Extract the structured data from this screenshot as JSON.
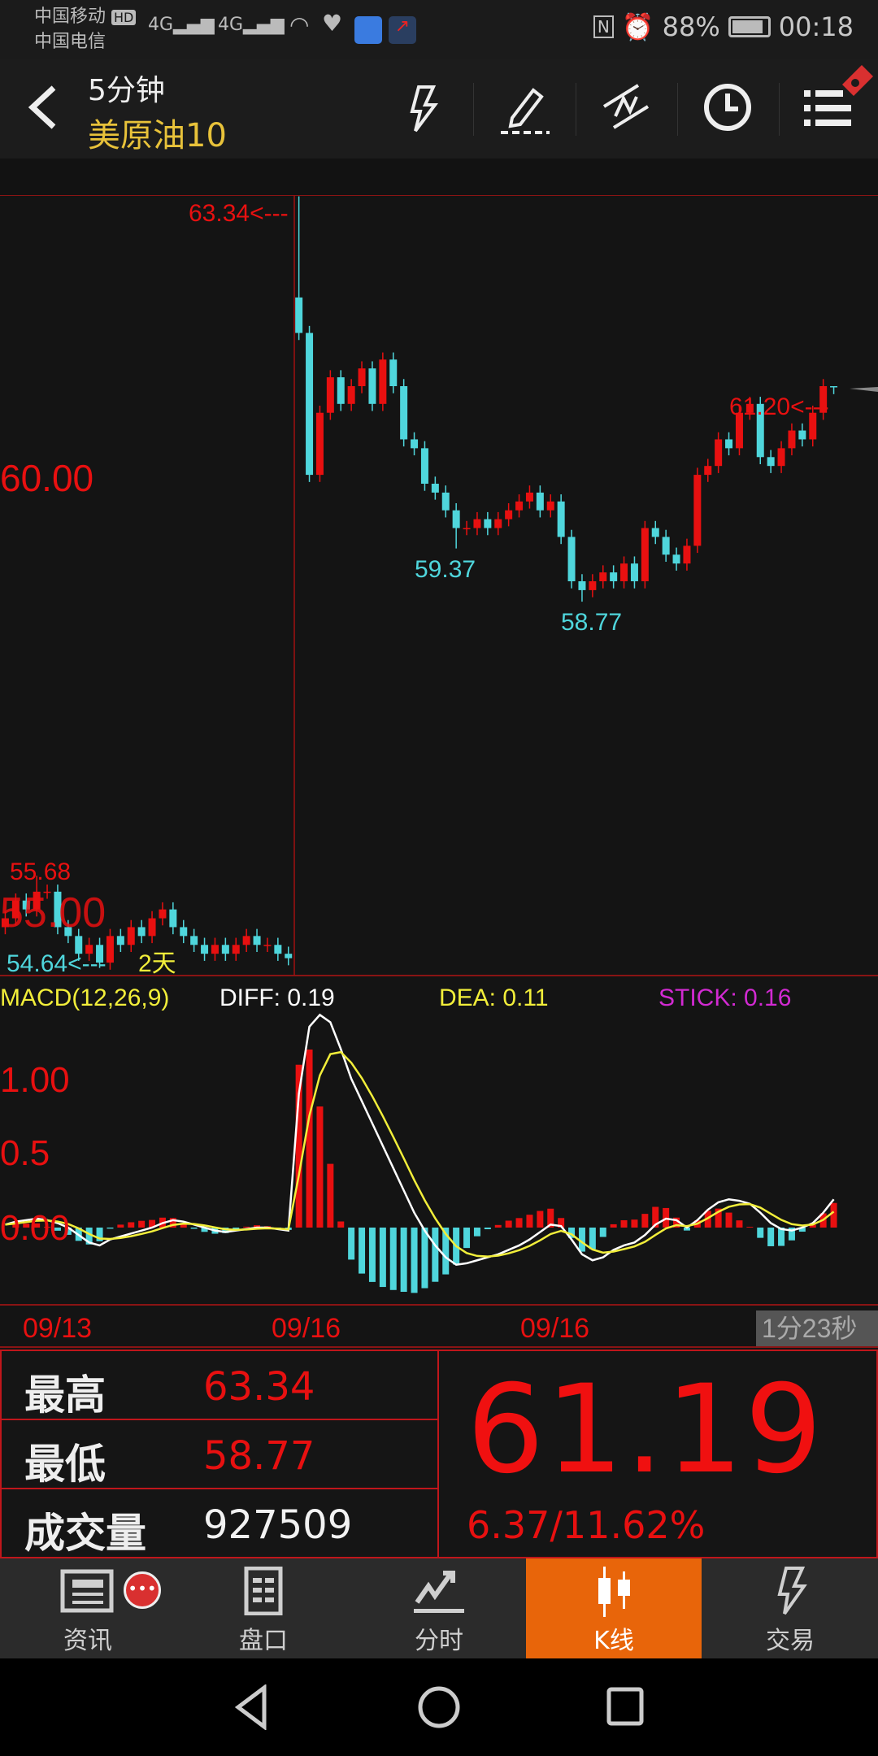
{
  "status_bar": {
    "carrier1": "中国移动",
    "carrier2": "中国电信",
    "hd": "HD",
    "net1": "4G",
    "net2": "4G",
    "battery": "88%",
    "time": "00:18"
  },
  "header": {
    "period": "5分钟",
    "instrument": "美原油10",
    "icons": [
      "back-icon",
      "flash-icon",
      "pencil-icon",
      "line-tool-icon",
      "clock-icon",
      "menu-list-icon"
    ]
  },
  "chart": {
    "labels": {
      "high_marker": "63.34<---",
      "low1": "59.37",
      "low2": "58.77",
      "last_high_marker": "61.20<---",
      "left_high": "55.68",
      "left_low_marker": "54.64<---",
      "axis_60": "60.00",
      "axis_55": "55.00",
      "days": "2天"
    },
    "macd": {
      "title": "MACD(12,26,9)",
      "diff": "DIFF: 0.19",
      "dea": "DEA: 0.11",
      "stick": "STICK: 0.16",
      "axis": [
        "1.00",
        "0.5",
        "0.00"
      ]
    },
    "dates": [
      "09/13",
      "09/16",
      "09/16"
    ],
    "timer": "1分23秒"
  },
  "chart_data": {
    "type": "candlestick",
    "interval": "5分钟",
    "closes": [
      55.2,
      55.4,
      55.3,
      55.5,
      55.5,
      55.1,
      55.0,
      54.8,
      54.9,
      54.7,
      55.0,
      54.9,
      55.1,
      55.0,
      55.2,
      55.3,
      55.1,
      55.0,
      54.9,
      54.8,
      54.9,
      54.8,
      54.9,
      55.0,
      54.9,
      54.9,
      54.8,
      54.75,
      61.8,
      60.2,
      60.9,
      61.3,
      61.0,
      61.2,
      61.4,
      61.0,
      61.5,
      61.2,
      60.6,
      60.5,
      60.1,
      60.0,
      59.8,
      59.6,
      59.6,
      59.7,
      59.6,
      59.7,
      59.8,
      59.9,
      60.0,
      59.8,
      59.9,
      59.5,
      59.0,
      58.9,
      59.0,
      59.1,
      59.0,
      59.2,
      59.0,
      59.6,
      59.5,
      59.3,
      59.2,
      59.4,
      60.2,
      60.3,
      60.6,
      60.5,
      60.9,
      61.0,
      60.4,
      60.3,
      60.5,
      60.7,
      60.6,
      60.9,
      61.2,
      61.19
    ],
    "extremes": [
      {
        "index": 3,
        "high": 55.68
      },
      {
        "index": 9,
        "low": 54.64
      },
      {
        "index": 28,
        "open": 62.2,
        "high": 63.34
      },
      {
        "index": 43,
        "low": 59.37
      },
      {
        "index": 55,
        "low": 58.77
      },
      {
        "index": 79,
        "high": 61.2
      }
    ],
    "diff": [
      0.02,
      0.04,
      0.05,
      0.06,
      0.05,
      0.03,
      0.0,
      -0.05,
      -0.1,
      -0.12,
      -0.08,
      -0.06,
      -0.04,
      -0.02,
      0.0,
      0.03,
      0.05,
      0.04,
      0.02,
      0.0,
      -0.02,
      -0.03,
      -0.02,
      -0.01,
      0.0,
      0.0,
      -0.01,
      -0.02,
      0.9,
      1.35,
      1.43,
      1.38,
      1.2,
      1.0,
      0.85,
      0.7,
      0.55,
      0.4,
      0.25,
      0.1,
      -0.02,
      -0.12,
      -0.2,
      -0.25,
      -0.24,
      -0.22,
      -0.2,
      -0.18,
      -0.15,
      -0.12,
      -0.08,
      -0.03,
      0.02,
      0.01,
      -0.08,
      -0.18,
      -0.22,
      -0.2,
      -0.15,
      -0.12,
      -0.1,
      -0.05,
      0.02,
      0.06,
      0.05,
      0.0,
      0.05,
      0.12,
      0.17,
      0.19,
      0.18,
      0.16,
      0.1,
      0.03,
      -0.01,
      -0.02,
      0.0,
      0.03,
      0.1,
      0.19
    ],
    "price_range": [
      54.6,
      63.4
    ],
    "macd_range": [
      -0.3,
      1.5
    ],
    "colors": {
      "up": "#e81010",
      "down": "#4fd6dc",
      "diff": "#ffffff",
      "dea": "#f2ee3a",
      "stick": "#d22ad2",
      "grid": "#8a1414"
    }
  },
  "info": {
    "high_label": "最高",
    "high": "63.34",
    "low_label": "最低",
    "low": "58.77",
    "vol_label": "成交量",
    "volume": "927509",
    "price": "61.19",
    "change": "6.37/11.62%"
  },
  "tabs": [
    {
      "label": "资讯",
      "icon": "news-icon"
    },
    {
      "label": "盘口",
      "icon": "orderbook-icon"
    },
    {
      "label": "分时",
      "icon": "timeshare-icon"
    },
    {
      "label": "K线",
      "icon": "candlestick-icon",
      "active": true
    },
    {
      "label": "交易",
      "icon": "trade-icon"
    }
  ],
  "accent": "#e8650a"
}
